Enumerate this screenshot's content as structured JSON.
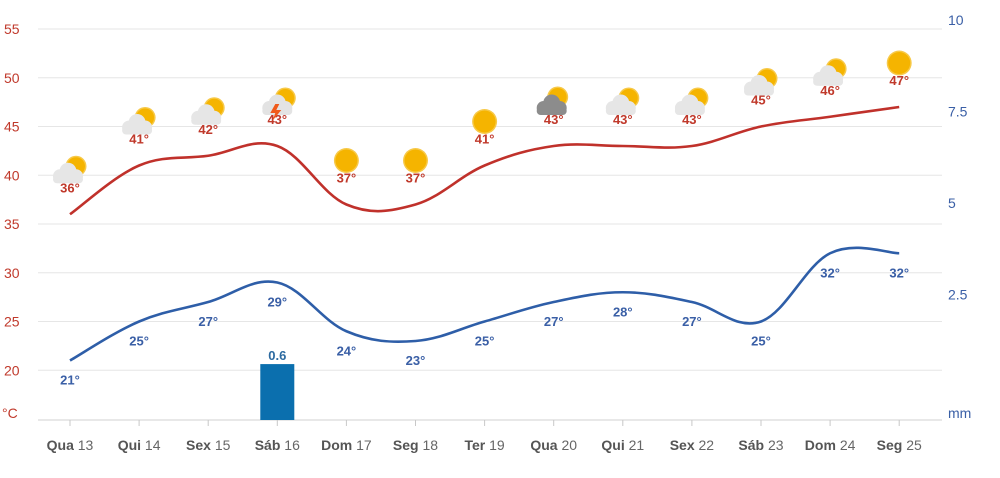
{
  "chart_data": {
    "type": "line",
    "categories": [
      {
        "day": "Qua",
        "num": "13"
      },
      {
        "day": "Qui",
        "num": "14"
      },
      {
        "day": "Sex",
        "num": "15"
      },
      {
        "day": "Sáb",
        "num": "16"
      },
      {
        "day": "Dom",
        "num": "17"
      },
      {
        "day": "Seg",
        "num": "18"
      },
      {
        "day": "Ter",
        "num": "19"
      },
      {
        "day": "Qua",
        "num": "20"
      },
      {
        "day": "Qui",
        "num": "21"
      },
      {
        "day": "Sex",
        "num": "22"
      },
      {
        "day": "Sáb",
        "num": "23"
      },
      {
        "day": "Dom",
        "num": "24"
      },
      {
        "day": "Seg",
        "num": "25"
      }
    ],
    "series": [
      {
        "key": "max",
        "values": [
          36,
          41,
          42,
          43,
          37,
          37,
          41,
          43,
          43,
          43,
          45,
          46,
          47
        ],
        "color": "#c0312b",
        "labels": [
          "36°",
          "41°",
          "42°",
          "43°",
          "37°",
          "37°",
          "41°",
          "43°",
          "43°",
          "43°",
          "45°",
          "46°",
          "47°"
        ]
      },
      {
        "key": "min",
        "values": [
          21,
          25,
          27,
          29,
          24,
          23,
          25,
          27,
          28,
          27,
          25,
          32,
          32
        ],
        "color": "#2e5ea8",
        "labels": [
          "21°",
          "25°",
          "27°",
          "29°",
          "24°",
          "23°",
          "25°",
          "27°",
          "28°",
          "27°",
          "25°",
          "32°",
          "32°"
        ]
      }
    ],
    "precipitation": {
      "values": [
        0,
        0,
        0,
        0.6,
        0,
        0,
        0,
        0,
        0,
        0,
        0,
        0,
        0
      ],
      "labels": [
        "",
        "",
        "",
        "0.6",
        "",
        "",
        "",
        "",
        "",
        "",
        "",
        "",
        ""
      ],
      "color": "#0b6fae"
    },
    "weather_icons": [
      "partly-cloudy-icon",
      "partly-cloudy-icon",
      "partly-cloudy-icon",
      "thunderstorm-icon",
      "sunny-icon",
      "sunny-icon",
      "sunny-icon",
      "cloudy-icon",
      "partly-cloudy-icon",
      "partly-cloudy-icon",
      "partly-cloudy-icon",
      "partly-cloudy-icon",
      "sunny-icon"
    ],
    "y_left": {
      "unit": "°C",
      "range": [
        15,
        57
      ],
      "ticks": [
        "20",
        "25",
        "30",
        "35",
        "40",
        "45",
        "50",
        "55"
      ],
      "tick_values": [
        20,
        25,
        30,
        35,
        40,
        45,
        50,
        55
      ]
    },
    "y_right": {
      "unit": "mm",
      "range": [
        -0.9,
        10.3
      ],
      "ticks": [
        "2.5",
        "5",
        "7.5",
        "10"
      ],
      "tick_values": [
        2.5,
        5,
        7.5,
        10
      ]
    },
    "grid": true
  }
}
